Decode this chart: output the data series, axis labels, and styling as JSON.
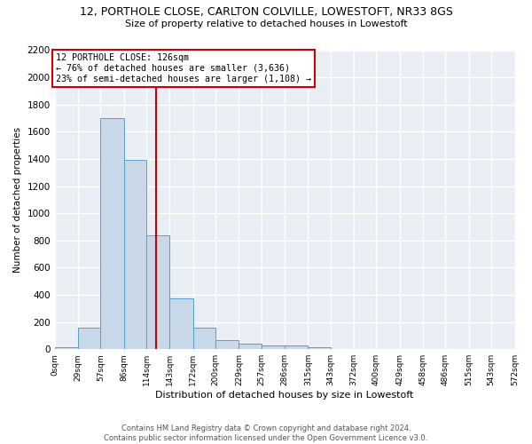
{
  "title": "12, PORTHOLE CLOSE, CARLTON COLVILLE, LOWESTOFT, NR33 8GS",
  "subtitle": "Size of property relative to detached houses in Lowestoft",
  "xlabel": "Distribution of detached houses by size in Lowestoft",
  "ylabel": "Number of detached properties",
  "bar_color": "#c8d8e8",
  "bar_edge_color": "#5a9ec8",
  "background_color": "#e8eef4",
  "grid_color": "#ffffff",
  "bin_edges": [
    0,
    29,
    57,
    86,
    114,
    143,
    172,
    200,
    229,
    257,
    286,
    315,
    343,
    372,
    400,
    429,
    458,
    486,
    515,
    543,
    572
  ],
  "bin_labels": [
    "0sqm",
    "29sqm",
    "57sqm",
    "86sqm",
    "114sqm",
    "143sqm",
    "172sqm",
    "200sqm",
    "229sqm",
    "257sqm",
    "286sqm",
    "315sqm",
    "343sqm",
    "372sqm",
    "400sqm",
    "429sqm",
    "458sqm",
    "486sqm",
    "515sqm",
    "543sqm",
    "572sqm"
  ],
  "bar_heights": [
    15,
    155,
    1700,
    1390,
    835,
    375,
    160,
    65,
    38,
    30,
    27,
    15,
    0,
    0,
    0,
    0,
    0,
    0,
    0,
    0
  ],
  "property_size": 126,
  "vline_color": "#cc0000",
  "annotation_text": "12 PORTHOLE CLOSE: 126sqm\n← 76% of detached houses are smaller (3,636)\n23% of semi-detached houses are larger (1,108) →",
  "annotation_box_color": "#ffffff",
  "annotation_box_edge_color": "#cc0000",
  "ylim": [
    0,
    2200
  ],
  "yticks": [
    0,
    200,
    400,
    600,
    800,
    1000,
    1200,
    1400,
    1600,
    1800,
    2000,
    2200
  ],
  "footer_line1": "Contains HM Land Registry data © Crown copyright and database right 2024.",
  "footer_line2": "Contains public sector information licensed under the Open Government Licence v3.0."
}
